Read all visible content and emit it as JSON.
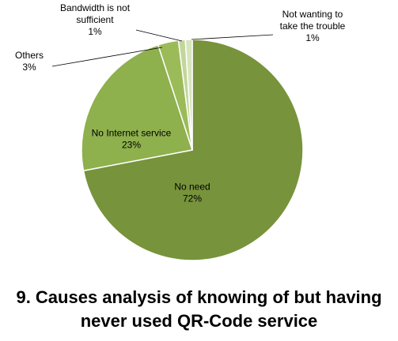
{
  "chart_data": {
    "type": "pie",
    "title": "9. Causes analysis of knowing of but having never used QR-Code service",
    "title_lines": [
      "9. Causes analysis of knowing of but having",
      "never used QR-Code service"
    ],
    "start_angle_deg": 0,
    "direction": "clockwise",
    "legend": "none",
    "slices": [
      {
        "label_lines": [
          "No need"
        ],
        "percent_label": "72%",
        "value": 72,
        "color": "#77933c",
        "label_color": "#000000"
      },
      {
        "label_lines": [
          "No Internet service"
        ],
        "percent_label": "23%",
        "value": 23,
        "color": "#8eb04d",
        "label_color": "#000000"
      },
      {
        "label_lines": [
          "Others"
        ],
        "percent_label": "3%",
        "value": 3,
        "color": "#9bbb59",
        "label_color": "#000000"
      },
      {
        "label_lines": [
          "Bandwidth is not",
          "sufficient"
        ],
        "percent_label": "1%",
        "value": 1,
        "color": "#c3d69b",
        "label_color": "#000000"
      },
      {
        "label_lines": [
          "Not wanting to",
          "take the trouble"
        ],
        "percent_label": "1%",
        "value": 1,
        "color": "#d7e4bd",
        "label_color": "#000000"
      }
    ]
  }
}
